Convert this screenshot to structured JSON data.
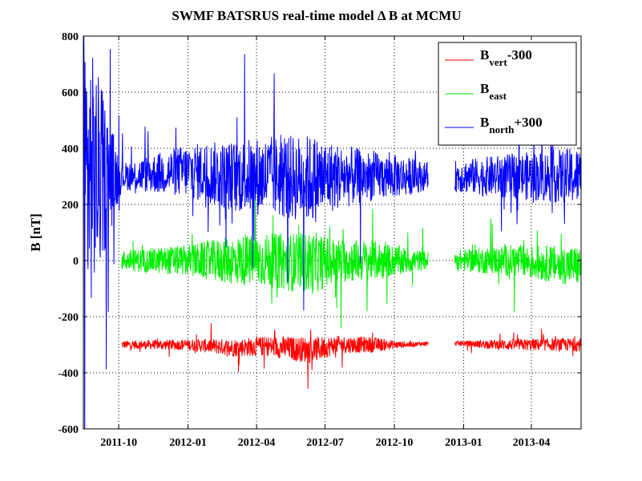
{
  "chart_data": {
    "type": "line",
    "title": "SWMF BATSRUS real-time model  Δ B at MCMU",
    "xlabel": "",
    "ylabel": "B [nT]",
    "xlim": [
      "2011-08-15",
      "2013-06-06"
    ],
    "ylim": [
      -600,
      800
    ],
    "yticks": [
      -600,
      -400,
      -200,
      0,
      200,
      400,
      600,
      800
    ],
    "ytick_labels": [
      "-600",
      "-400",
      "-200",
      "0",
      "200",
      "400",
      "600",
      "800"
    ],
    "xticks": [
      "2011-10",
      "2012-01",
      "2012-04",
      "2012-07",
      "2012-10",
      "2013-01",
      "2013-04"
    ],
    "grid": true,
    "legend_position": "top-right",
    "data_gap": [
      "2012-11-15",
      "2012-12-20"
    ],
    "series": [
      {
        "name": "Bvert-300",
        "legend": {
          "base": "B",
          "sub": "vert",
          "suffix": "-300"
        },
        "color": "#ff0000",
        "x": [
          "2011-10-05",
          "2012-01-01",
          "2012-03-01",
          "2012-04-15",
          "2012-06-15",
          "2012-07-15",
          "2012-09-01",
          "2012-10-15",
          "2012-11-15",
          "2012-12-20",
          "2013-03-01",
          "2013-06-06"
        ],
        "y": [
          -300,
          -300,
          -310,
          -305,
          -320,
          -300,
          -300,
          -300,
          -295,
          -295,
          -300,
          -300
        ],
        "envelope": [
          18,
          25,
          40,
          45,
          60,
          40,
          35,
          12,
          8,
          10,
          25,
          30
        ]
      },
      {
        "name": "Beast",
        "legend": {
          "base": "B",
          "sub": "east",
          "suffix": ""
        },
        "color": "#00ee00",
        "x": [
          "2011-10-05",
          "2012-01-01",
          "2012-03-01",
          "2012-04-15",
          "2012-06-15",
          "2012-07-15",
          "2012-09-01",
          "2012-10-15",
          "2012-11-15",
          "2012-12-20",
          "2013-03-01",
          "2013-06-06"
        ],
        "y": [
          0,
          0,
          0,
          0,
          -10,
          0,
          0,
          0,
          0,
          0,
          0,
          -20
        ],
        "envelope": [
          45,
          70,
          110,
          120,
          140,
          100,
          90,
          60,
          40,
          45,
          70,
          90
        ]
      },
      {
        "name": "Bnorth+300",
        "legend": {
          "base": "B",
          "sub": "north",
          "suffix": "+300"
        },
        "color": "#0000ff",
        "x": [
          "2011-08-15",
          "2011-10-05",
          "2012-01-01",
          "2012-03-01",
          "2012-04-15",
          "2012-06-15",
          "2012-07-15",
          "2012-09-01",
          "2012-10-15",
          "2012-11-15",
          "2012-12-20",
          "2013-03-01",
          "2013-06-06"
        ],
        "y": [
          300,
          300,
          320,
          300,
          300,
          290,
          300,
          300,
          300,
          300,
          300,
          300,
          300
        ],
        "envelope": [
          700,
          60,
          120,
          160,
          180,
          200,
          150,
          110,
          90,
          60,
          70,
          100,
          130
        ]
      }
    ]
  }
}
